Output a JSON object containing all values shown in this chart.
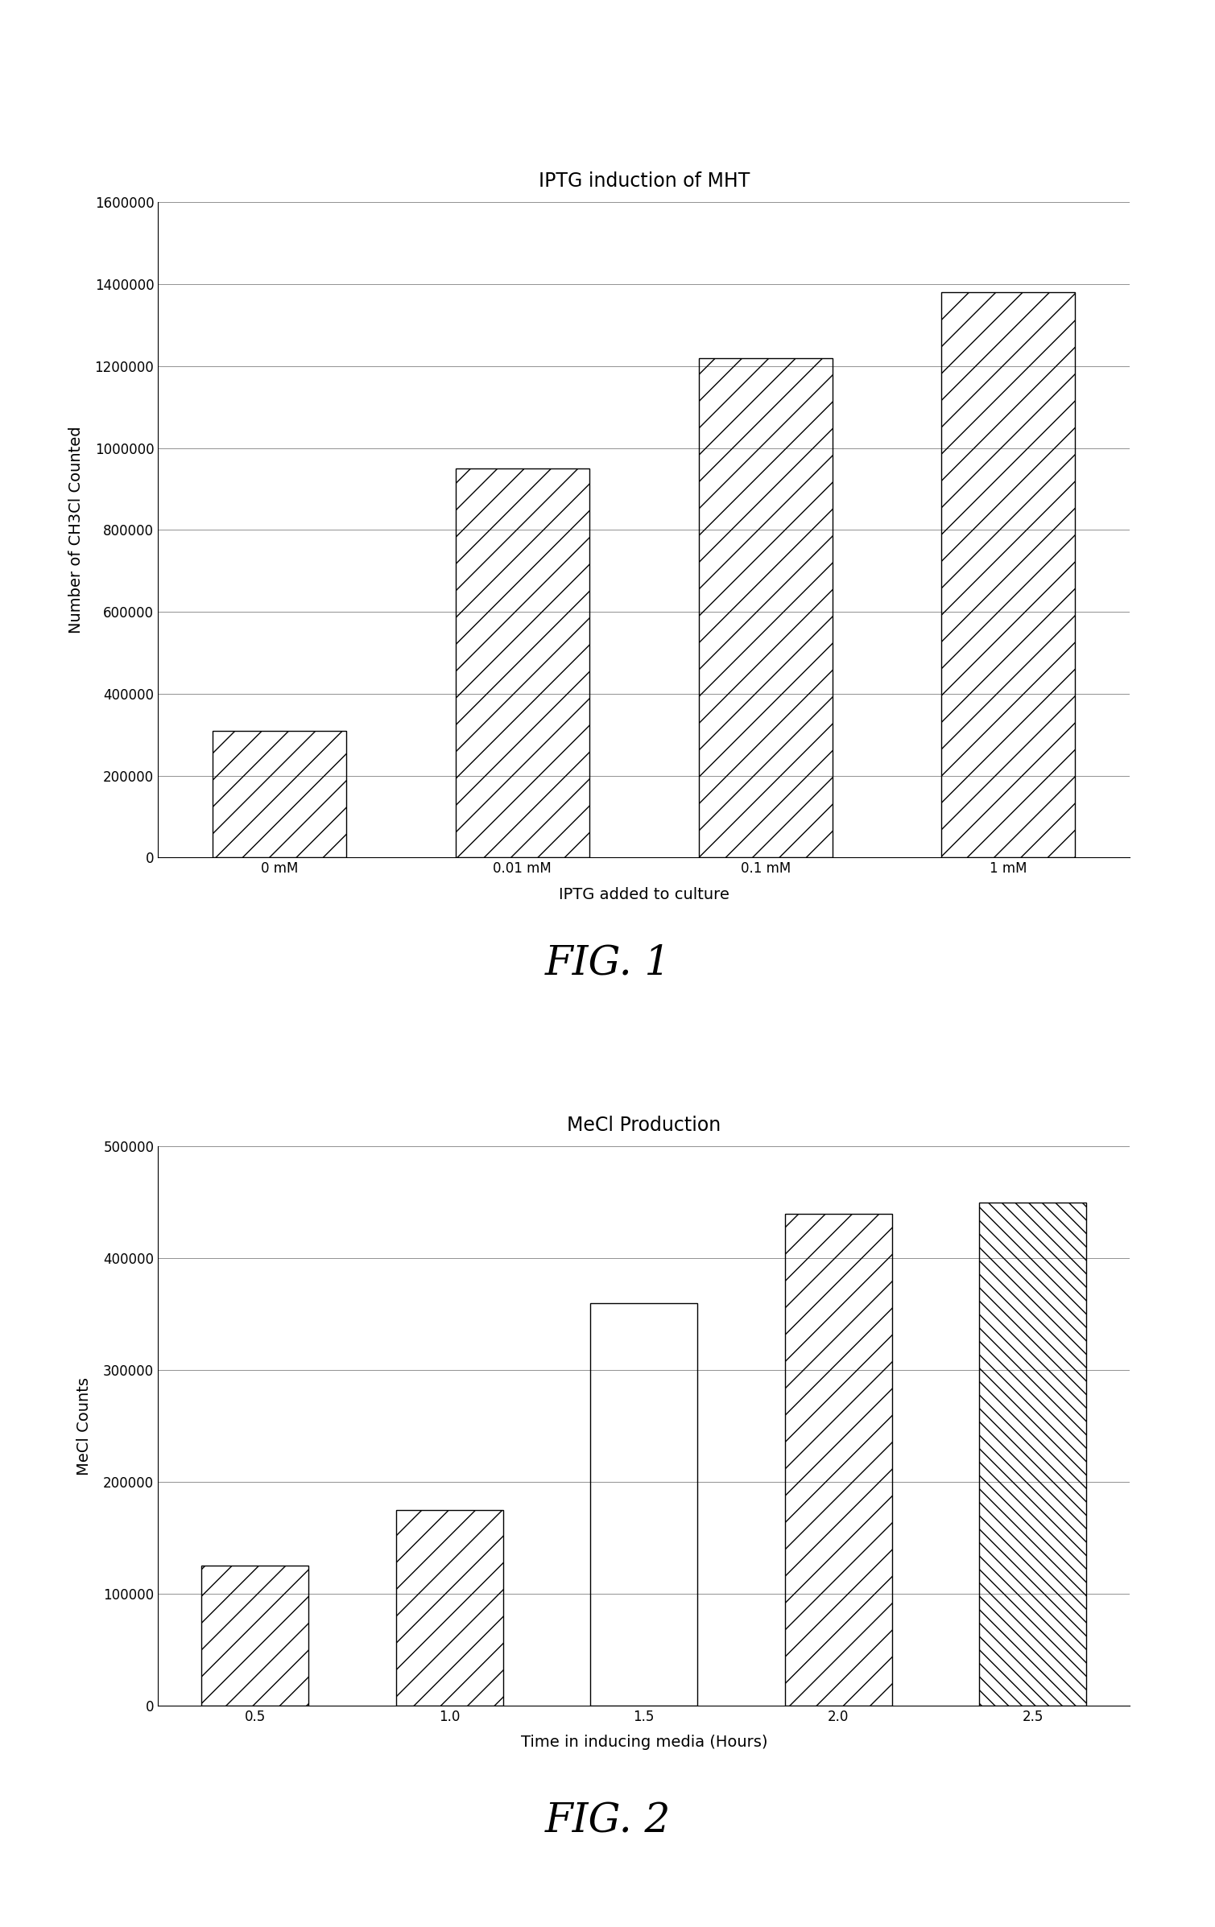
{
  "fig1": {
    "title": "IPTG induction of MHT",
    "xlabel": "IPTG added to culture",
    "ylabel": "Number of CH3Cl Counted",
    "categories": [
      "0 mM",
      "0.01 mM",
      "0.1 mM",
      "1 mM"
    ],
    "values": [
      310000,
      950000,
      1220000,
      1380000
    ],
    "ylim": [
      0,
      1600000
    ],
    "yticks": [
      0,
      200000,
      400000,
      600000,
      800000,
      1000000,
      1200000,
      1400000,
      1600000
    ],
    "hatches": [
      "/",
      "/",
      "/",
      "/"
    ],
    "bar_color": "white",
    "edge_color": "black",
    "fignum": "FIG. 1"
  },
  "fig2": {
    "title": "MeCl Production",
    "xlabel": "Time in inducing media (Hours)",
    "ylabel": "MeCl Counts",
    "categories": [
      "0.5",
      "1.0",
      "1.5",
      "2.0",
      "2.5"
    ],
    "values": [
      125000,
      175000,
      360000,
      440000,
      450000
    ],
    "hatches": [
      "/",
      "/",
      "",
      "/",
      "\\\\"
    ],
    "ylim": [
      0,
      500000
    ],
    "yticks": [
      0,
      100000,
      200000,
      300000,
      400000,
      500000
    ],
    "bar_color": "white",
    "edge_color": "black",
    "fignum": "FIG. 2"
  },
  "background_color": "#ffffff",
  "title_fontsize": 17,
  "label_fontsize": 14,
  "tick_fontsize": 12,
  "fignum_fontsize": 36
}
